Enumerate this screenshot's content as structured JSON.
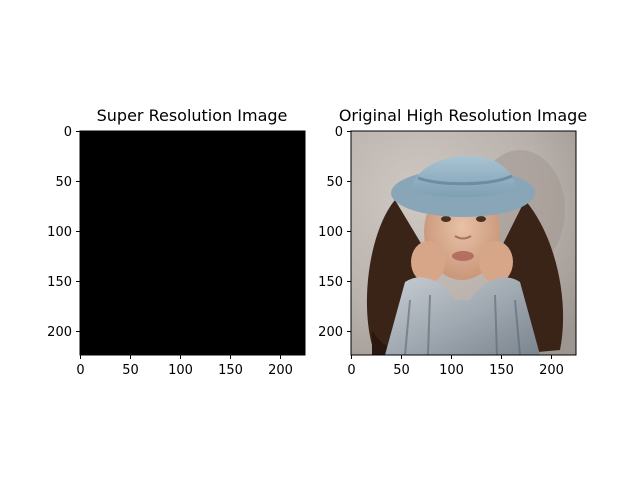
{
  "panels": [
    {
      "title": "Super Resolution Image",
      "image": "black-square",
      "x_ticks": [
        "0",
        "50",
        "100",
        "150",
        "200"
      ],
      "y_ticks": [
        "0",
        "50",
        "100",
        "150",
        "200"
      ]
    },
    {
      "title": "Original High Resolution Image",
      "image": "portrait-woman-blue-denim-hat",
      "x_ticks": [
        "0",
        "50",
        "100",
        "150",
        "200"
      ],
      "y_ticks": [
        "0",
        "50",
        "100",
        "150",
        "200"
      ]
    }
  ],
  "colors": {
    "background": "#ffffff",
    "sr_image": "#000000",
    "axis": "#000000"
  }
}
